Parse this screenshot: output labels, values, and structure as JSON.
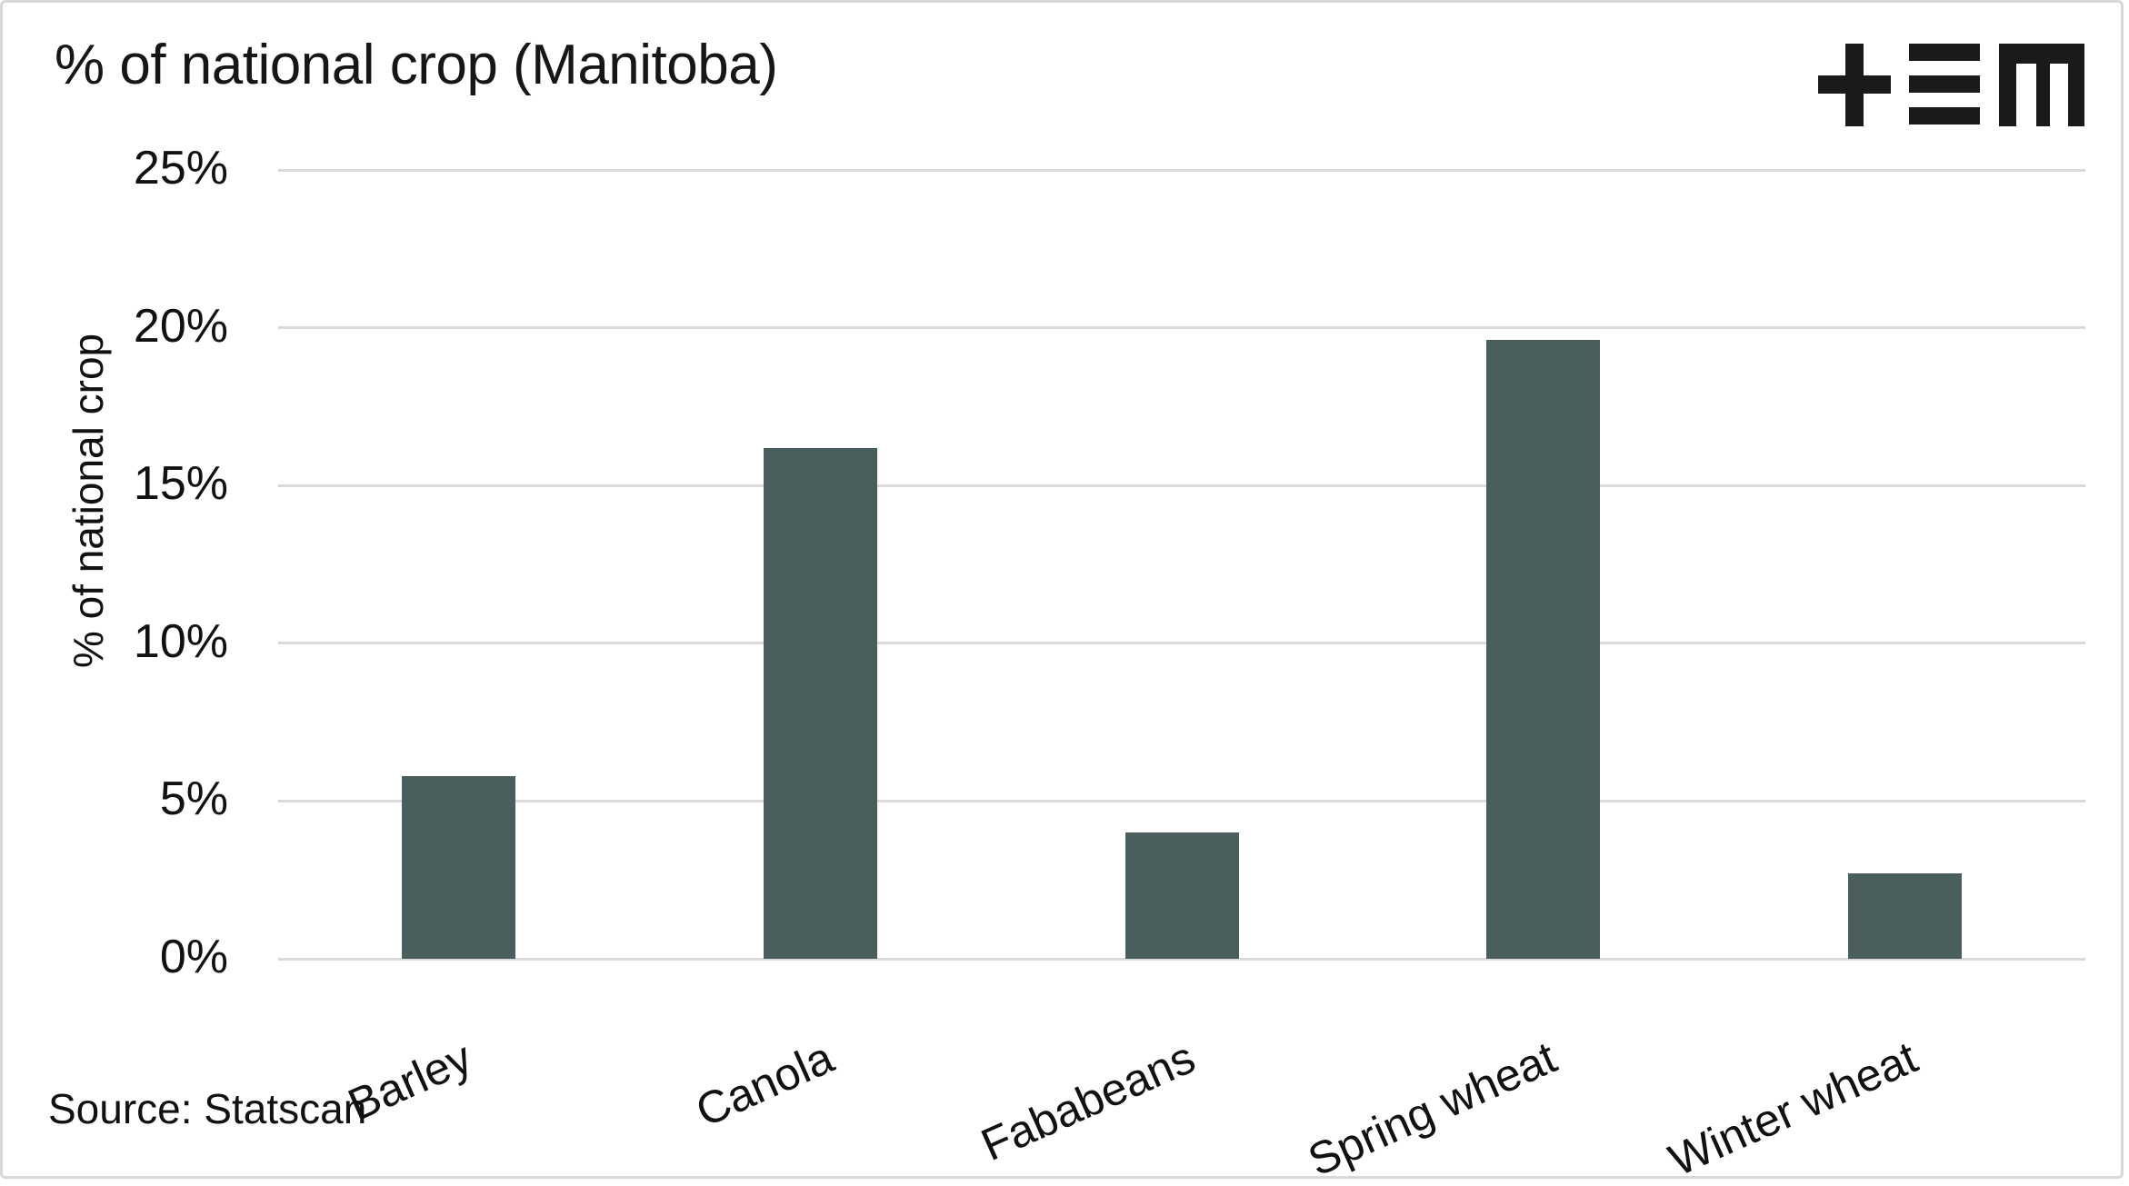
{
  "title": "% of national crop (Manitoba)",
  "source_note": "Source: Statscan",
  "logo_name": "plus-equals-m-logo",
  "colors": {
    "bar": "#4b5e5e",
    "gridline": "#dbdbdb",
    "text": "#111111",
    "title_text": "#161616",
    "border": "#d8d8d8",
    "background": "#ffffff",
    "logo": "#1a1a1a"
  },
  "chart_data": {
    "type": "bar",
    "title": "% of national crop (Manitoba)",
    "categories": [
      "Barley",
      "Canola",
      "Fababeans",
      "Spring wheat",
      "Winter wheat"
    ],
    "values": [
      5.8,
      16.2,
      4.0,
      19.6,
      2.7
    ],
    "xlabel": "",
    "ylabel": "% of national crop",
    "ylim": [
      0,
      25
    ],
    "ytick_values": [
      0,
      5,
      10,
      15,
      20,
      25
    ],
    "ytick_labels": [
      "0%",
      "5%",
      "10%",
      "15%",
      "20%",
      "25%"
    ],
    "grid": true,
    "legend": false,
    "x_label_rotation_deg": -24,
    "source": "Source: Statscan"
  }
}
